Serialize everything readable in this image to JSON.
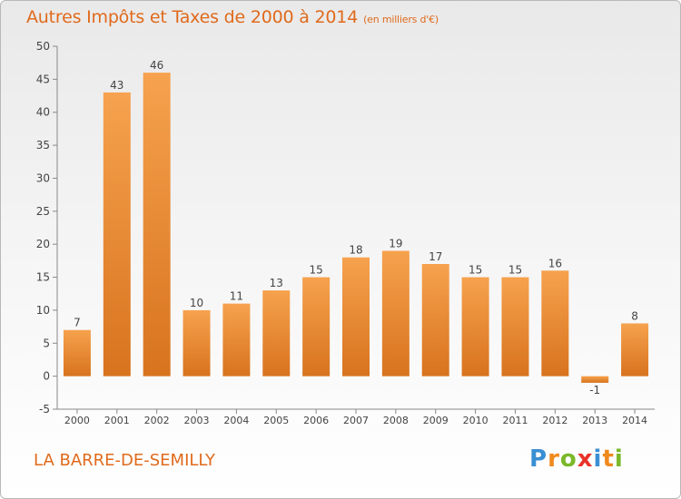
{
  "title": "Autres Impôts et Taxes de 2000 à 2014",
  "subtitle": "(en milliers d'€)",
  "commune": "LA BARRE-DE-SEMILLY",
  "logo": {
    "letters": [
      "P",
      "r",
      "o",
      "x",
      "i",
      "t",
      "i"
    ],
    "colors": [
      "#3a8fd4",
      "#f08a1c",
      "#7ab829",
      "#e8332a",
      "#3a8fd4",
      "#f08a1c",
      "#7ab829"
    ]
  },
  "colors": {
    "bar_top": "#f6a24e",
    "bar_bottom": "#d8731e",
    "accent": "#e06a1c"
  },
  "chart_data": {
    "type": "bar",
    "categories": [
      "2000",
      "2001",
      "2002",
      "2003",
      "2004",
      "2005",
      "2006",
      "2007",
      "2008",
      "2009",
      "2010",
      "2011",
      "2012",
      "2013",
      "2014"
    ],
    "values": [
      7,
      43,
      46,
      10,
      11,
      13,
      15,
      18,
      19,
      17,
      15,
      15,
      16,
      -1,
      8
    ],
    "ylim": [
      -5,
      50
    ],
    "yticks": [
      -5,
      0,
      5,
      10,
      15,
      20,
      25,
      30,
      35,
      40,
      45,
      50
    ],
    "grid": false
  }
}
